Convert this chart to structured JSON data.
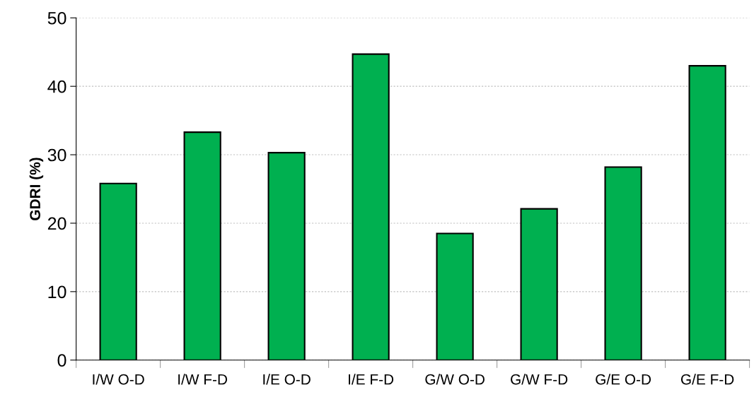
{
  "chart_data": {
    "type": "bar",
    "ylabel": "GDRI (%)",
    "categories": [
      "I/W O-D",
      "I/W F-D",
      "I/E O-D",
      "I/E F-D",
      "G/W O-D",
      "G/W F-D",
      "G/E O-D",
      "G/E F-D"
    ],
    "values": [
      25.8,
      33.3,
      30.3,
      44.7,
      18.5,
      22.1,
      28.2,
      43.0
    ],
    "color": "#00b050",
    "ylim": [
      0,
      50
    ],
    "yticks": [
      0,
      10,
      20,
      30,
      40,
      50
    ],
    "grid": "y",
    "legend": false
  }
}
